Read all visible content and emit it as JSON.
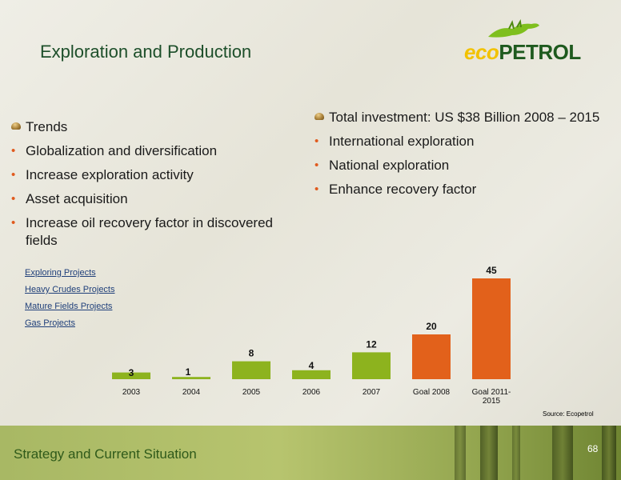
{
  "slide": {
    "title": "Exploration and Production",
    "logo": {
      "part1": "eco",
      "part2": "PETROL",
      "colors": {
        "eco": "#f2c200",
        "petrol": "#1e5a1e"
      }
    },
    "left_heading": "Trends",
    "left_items": [
      "Globalization and diversification",
      "Increase exploration activity",
      "Asset acquisition",
      "Increase oil recovery  factor in discovered fields"
    ],
    "right_heading": "Total investment: US $38 Billion 2008 – 2015",
    "right_items": [
      "International exploration",
      "National exploration",
      "Enhance recovery factor"
    ],
    "links": [
      "Exploring Projects",
      "Heavy Crudes  Projects",
      "Mature Fields Projects",
      "Gas Projects"
    ],
    "source": "Source: Ecopetrol",
    "footer": "Strategy and Current  Situation",
    "page_number": "68"
  },
  "chart_data": {
    "type": "bar",
    "categories": [
      "2003",
      "2004",
      "2005",
      "2006",
      "2007",
      "Goal 2008",
      "Goal 2011-2015"
    ],
    "category_lines": [
      [
        "2003"
      ],
      [
        "2004"
      ],
      [
        "2005"
      ],
      [
        "2006"
      ],
      [
        "2007"
      ],
      [
        "Goal 2008"
      ],
      [
        "Goal 2011-",
        "2015"
      ]
    ],
    "values": [
      3,
      1,
      8,
      4,
      12,
      20,
      45
    ],
    "colors": [
      "#8db31e",
      "#8db31e",
      "#8db31e",
      "#8db31e",
      "#8db31e",
      "#e2611b",
      "#e2611b"
    ],
    "ylim": [
      0,
      45
    ],
    "grid": false,
    "title": "",
    "xlabel": "",
    "ylabel": ""
  }
}
